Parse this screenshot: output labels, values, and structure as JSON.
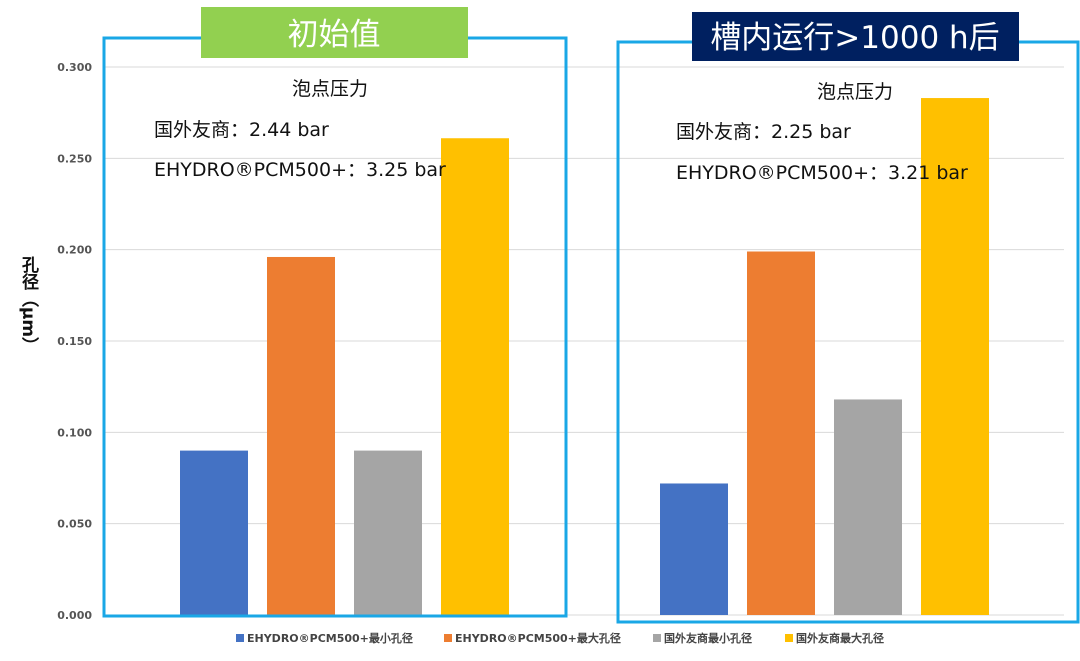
{
  "chart_data": {
    "type": "bar",
    "ylabel": "孔径（μm）",
    "ylim": [
      0,
      0.3
    ],
    "yticks": [
      "0.000",
      "0.050",
      "0.100",
      "0.150",
      "0.200",
      "0.250",
      "0.300"
    ],
    "grid": true,
    "legend_position": "bottom",
    "series": [
      {
        "name": "EHYDRO®PCM500+最小孔径",
        "color": "#4472c4",
        "values": [
          0.09,
          0.072
        ]
      },
      {
        "name": "EHYDRO®PCM500+最大孔径",
        "color": "#ed7d31",
        "values": [
          0.196,
          0.199
        ]
      },
      {
        "name": "国外友商最小孔径",
        "color": "#a5a5a5",
        "values": [
          0.09,
          0.118
        ]
      },
      {
        "name": "国外友商最大孔径",
        "color": "#ffc000",
        "values": [
          0.261,
          0.283
        ]
      }
    ],
    "panels": [
      {
        "title": "初始值",
        "title_bg": "#92d050",
        "annotation_title": "泡点压力",
        "lines": [
          "国外友商：2.44 bar",
          "EHYDRO®PCM500+：3.25 bar"
        ]
      },
      {
        "title": "槽内运行>1000 h后",
        "title_bg": "#002060",
        "annotation_title": "泡点压力",
        "lines": [
          "国外友商：2.25 bar",
          "EHYDRO®PCM500+：3.21 bar"
        ]
      }
    ]
  }
}
